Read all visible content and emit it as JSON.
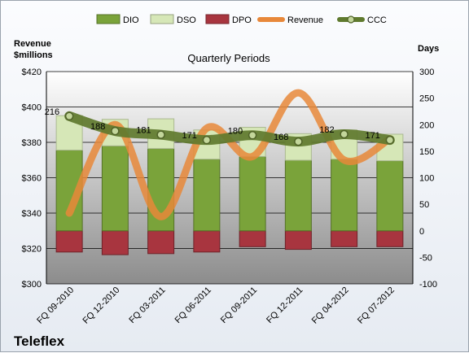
{
  "chart_data": {
    "type": "bar",
    "title": "Quarterly Periods",
    "company": "Teleflex",
    "left_axis_label": [
      "Revenue",
      "$millions"
    ],
    "right_axis_label": "Days",
    "categories": [
      "FQ 09-2010",
      "FQ 12-2010",
      "FQ 03-2011",
      "FQ 06-2011",
      "FQ 09-2011",
      "FQ 12-2011",
      "FQ 04-2012",
      "FQ 07-2012"
    ],
    "left_axis": {
      "min": 300,
      "max": 420,
      "step": 20,
      "prefix": "$"
    },
    "right_axis": {
      "min": -100,
      "max": 300,
      "step": 50
    },
    "grid": true,
    "legend_position": "top",
    "series": [
      {
        "name": "DIO",
        "kind": "stacked-bar",
        "axis": "right",
        "color": "#7aa33a",
        "values": [
          152,
          160,
          155,
          135,
          140,
          133,
          135,
          132
        ]
      },
      {
        "name": "DSO",
        "kind": "stacked-bar",
        "axis": "right",
        "color": "#d6e7b7",
        "values": [
          65,
          50,
          56,
          55,
          55,
          50,
          55,
          50
        ]
      },
      {
        "name": "DPO",
        "kind": "negative-bar",
        "axis": "right",
        "color": "#a8353f",
        "values": [
          -40,
          -45,
          -43,
          -40,
          -30,
          -35,
          -30,
          -30
        ]
      },
      {
        "name": "Revenue",
        "kind": "line",
        "axis": "left",
        "color": "#e8883a",
        "values": [
          340,
          390,
          338,
          388,
          372,
          408,
          370,
          382
        ]
      },
      {
        "name": "CCC",
        "kind": "line",
        "axis": "right",
        "color": "#5f7a2e",
        "values": [
          216,
          188,
          181,
          171,
          180,
          168,
          182,
          171
        ]
      }
    ]
  }
}
